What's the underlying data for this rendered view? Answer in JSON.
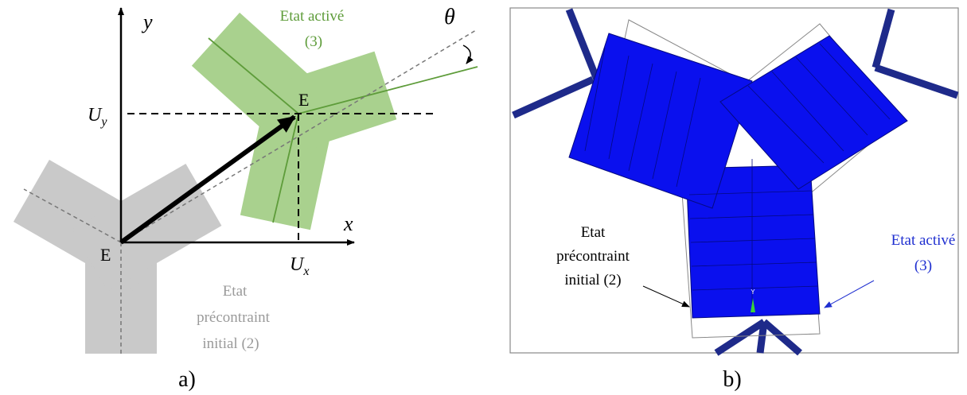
{
  "panel_a": {
    "axis_y": "y",
    "axis_x": "x",
    "angle": "θ",
    "origin_label": "E",
    "moved_label": "E",
    "uy": {
      "main": "U",
      "sub": "y"
    },
    "ux": {
      "main": "U",
      "sub": "x"
    },
    "activated_state": [
      "Etat activé",
      "(3)"
    ],
    "initial_state": [
      "Etat",
      "précontraint",
      "initial (2)"
    ],
    "caption": "a)"
  },
  "panel_b": {
    "initial_state": [
      "Etat",
      "précontraint",
      "initial (2)"
    ],
    "activated_state": [
      "Etat activé",
      "(3)"
    ],
    "axis_marker": "Y",
    "caption": "b)"
  }
}
